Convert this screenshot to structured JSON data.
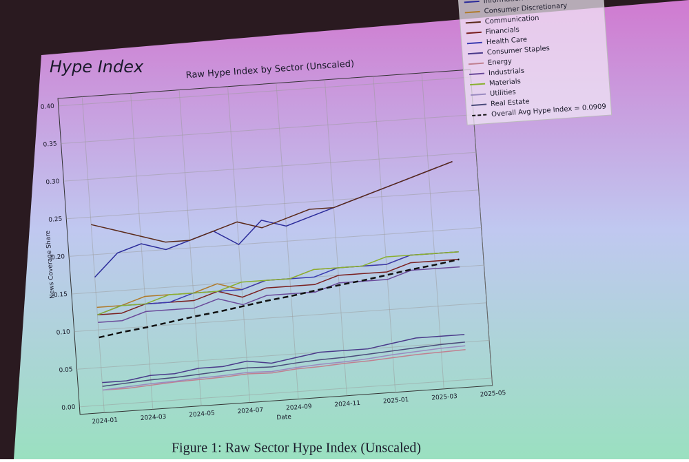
{
  "slide_title": "Hype Index",
  "caption": "Figure 1: Raw Sector Hype Index (Unscaled)",
  "chart_data": {
    "type": "line",
    "title": "Raw Hype Index by Sector (Unscaled)",
    "xlabel": "Date",
    "ylabel": "News Coverage Share",
    "grid": true,
    "legend": "upper right",
    "x": [
      "2024-01",
      "2024-02",
      "2024-03",
      "2024-04",
      "2024-05",
      "2024-06",
      "2024-07",
      "2024-08",
      "2024-09",
      "2024-10",
      "2024-11",
      "2024-12",
      "2025-01",
      "2025-02",
      "2025-03",
      "2025-04"
    ],
    "xlim": [
      "2023-12",
      "2025-05"
    ],
    "xticks": [
      "2024-01",
      "2024-03",
      "2024-05",
      "2024-07",
      "2024-09",
      "2024-11",
      "2025-01",
      "2025-03",
      "2025-05"
    ],
    "ylim": [
      -0.01,
      0.41
    ],
    "yticks": [
      {
        "value": 0,
        "label": "0.00"
      },
      {
        "value": 0.05,
        "label": "0.05"
      },
      {
        "value": 0.1,
        "label": "0.10"
      },
      {
        "value": 0.15,
        "label": "0.15"
      },
      {
        "value": 0.2,
        "label": "0.20"
      },
      {
        "value": 0.25,
        "label": "0.25"
      },
      {
        "value": 0.3,
        "label": "0.30"
      },
      {
        "value": 0.35,
        "label": "0.35"
      },
      {
        "value": 0.4,
        "label": "0.40"
      }
    ],
    "series": [
      {
        "name": "Information Technology",
        "color": "#2b2b9a",
        "values": [
          0.17,
          0.2,
          0.21,
          0.2,
          0.21,
          0.22,
          0.2,
          0.23,
          0.22,
          0.23,
          0.24,
          0.25,
          0.26,
          0.27,
          0.28,
          0.29
        ]
      },
      {
        "name": "Consumer Discretionary",
        "color": "#b07a2a",
        "values": [
          0.13,
          0.13,
          0.14,
          0.14,
          0.14,
          0.15,
          0.14,
          0.15,
          0.15,
          0.16,
          0.16,
          0.16,
          0.16,
          0.17,
          0.17,
          0.17
        ]
      },
      {
        "name": "Communication",
        "color": "#5a2a1a",
        "values": [
          0.24,
          0.23,
          0.22,
          0.21,
          0.21,
          0.22,
          0.23,
          0.22,
          0.23,
          0.24,
          0.24,
          0.25,
          0.26,
          0.27,
          0.28,
          0.29
        ]
      },
      {
        "name": "Financials",
        "color": "#7a2020",
        "values": [
          0.12,
          0.12,
          0.13,
          0.13,
          0.13,
          0.14,
          0.13,
          0.14,
          0.14,
          0.14,
          0.15,
          0.15,
          0.15,
          0.16,
          0.16,
          0.16
        ]
      },
      {
        "name": "Health Care",
        "color": "#3a3ab0",
        "values": [
          0.12,
          0.13,
          0.13,
          0.13,
          0.14,
          0.14,
          0.14,
          0.15,
          0.15,
          0.15,
          0.16,
          0.16,
          0.16,
          0.17,
          0.17,
          0.17
        ]
      },
      {
        "name": "Consumer Staples",
        "color": "#4a3a8a",
        "values": [
          0.03,
          0.03,
          0.035,
          0.035,
          0.04,
          0.04,
          0.045,
          0.04,
          0.045,
          0.05,
          0.05,
          0.05,
          0.055,
          0.06,
          0.06,
          0.06
        ]
      },
      {
        "name": "Energy",
        "color": "#c08090",
        "values": [
          0.02,
          0.02,
          0.022,
          0.024,
          0.025,
          0.026,
          0.028,
          0.027,
          0.03,
          0.031,
          0.033,
          0.034,
          0.036,
          0.038,
          0.039,
          0.04
        ]
      },
      {
        "name": "Industrials",
        "color": "#6a4a9a",
        "values": [
          0.11,
          0.11,
          0.12,
          0.12,
          0.12,
          0.13,
          0.12,
          0.13,
          0.13,
          0.13,
          0.14,
          0.14,
          0.14,
          0.15,
          0.15,
          0.15
        ]
      },
      {
        "name": "Materials",
        "color": "#8ab030",
        "values": [
          0.12,
          0.13,
          0.13,
          0.14,
          0.14,
          0.14,
          0.15,
          0.15,
          0.15,
          0.16,
          0.16,
          0.16,
          0.17,
          0.17,
          0.17,
          0.17
        ]
      },
      {
        "name": "Utilities",
        "color": "#9a8ac0",
        "values": [
          0.02,
          0.022,
          0.024,
          0.025,
          0.027,
          0.028,
          0.03,
          0.029,
          0.032,
          0.034,
          0.035,
          0.037,
          0.04,
          0.042,
          0.044,
          0.045
        ]
      },
      {
        "name": "Real Estate",
        "color": "#4a4a7a",
        "values": [
          0.025,
          0.027,
          0.029,
          0.03,
          0.032,
          0.034,
          0.036,
          0.035,
          0.038,
          0.04,
          0.041,
          0.043,
          0.045,
          0.047,
          0.049,
          0.05
        ]
      },
      {
        "name": "Overall Avg Hype Index = 0.0909",
        "color": "#111111",
        "dash": "dashed",
        "values": [
          0.09,
          0.095,
          0.099,
          0.104,
          0.109,
          0.113,
          0.118,
          0.123,
          0.127,
          0.132,
          0.137,
          0.141,
          0.146,
          0.151,
          0.155,
          0.16
        ]
      }
    ]
  }
}
